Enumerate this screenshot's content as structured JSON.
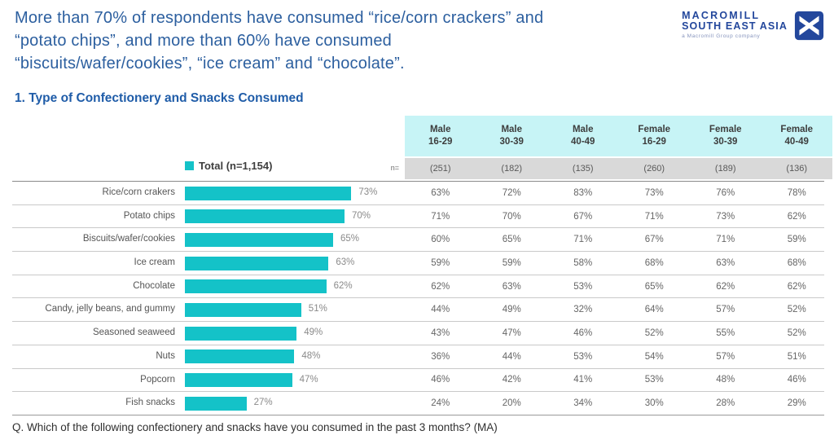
{
  "header": {
    "title_lines": [
      "More than 70% of respondents have consumed “rice/corn crackers” and",
      "“potato chips”, and more than 60% have consumed",
      "“biscuits/wafer/cookies”, “ice cream” and “chocolate”."
    ],
    "logo": {
      "line1": "MACROMILL",
      "line2": "SOUTH EAST ASIA",
      "tagline": "a Macromill Group company"
    }
  },
  "section_title": "1. Type of Confectionery and Snacks Consumed",
  "legend": {
    "label": "Total (n=1,154)"
  },
  "n_label": "n=",
  "footer": "Q. Which of the following confectionery and snacks have you consumed in the past 3 months?  (MA)",
  "colors": {
    "bar": "#14c2c8",
    "header_bg": "#c7f4f6",
    "n_row_bg": "#d9d9d9",
    "title_blue": "#2c5f9f",
    "section_blue": "#1f5ca8",
    "logo_blue": "#23479c"
  },
  "chart_data": {
    "type": "bar",
    "orientation": "horizontal",
    "title": "1. Type of Confectionery and Snacks Consumed",
    "xlabel": "",
    "ylabel": "",
    "xlim": [
      0,
      100
    ],
    "unit": "%",
    "grid": false,
    "legend_position": "top-left of bars",
    "categories": [
      "Rice/corn crakers",
      "Potato chips",
      "Biscuits/wafer/cookies",
      "Ice cream",
      "Chocolate",
      "Candy, jelly beans, and gummy",
      "Seasoned seaweed",
      "Nuts",
      "Popcorn",
      "Fish snacks"
    ],
    "total_series": {
      "name": "Total (n=1,154)",
      "values": [
        73,
        70,
        65,
        63,
        62,
        51,
        49,
        48,
        47,
        27
      ]
    },
    "series": [
      {
        "name": "Male 16-29",
        "group": "Male",
        "age": "16-29",
        "n": "(251)",
        "values": [
          63,
          71,
          60,
          59,
          62,
          44,
          43,
          36,
          46,
          24
        ]
      },
      {
        "name": "Male 30-39",
        "group": "Male",
        "age": "30-39",
        "n": "(182)",
        "values": [
          72,
          70,
          65,
          59,
          63,
          49,
          47,
          44,
          42,
          20
        ]
      },
      {
        "name": "Male 40-49",
        "group": "Male",
        "age": "40-49",
        "n": "(135)",
        "values": [
          83,
          67,
          71,
          58,
          53,
          32,
          46,
          53,
          41,
          34
        ]
      },
      {
        "name": "Female 16-29",
        "group": "Female",
        "age": "16-29",
        "n": "(260)",
        "values": [
          73,
          71,
          67,
          68,
          65,
          64,
          52,
          54,
          53,
          30
        ]
      },
      {
        "name": "Female 30-39",
        "group": "Female",
        "age": "30-39",
        "n": "(189)",
        "values": [
          76,
          73,
          71,
          63,
          62,
          57,
          55,
          57,
          48,
          28
        ]
      },
      {
        "name": "Female 40-49",
        "group": "Female",
        "age": "40-49",
        "n": "(136)",
        "values": [
          78,
          62,
          59,
          68,
          62,
          52,
          52,
          51,
          46,
          29
        ]
      }
    ]
  }
}
